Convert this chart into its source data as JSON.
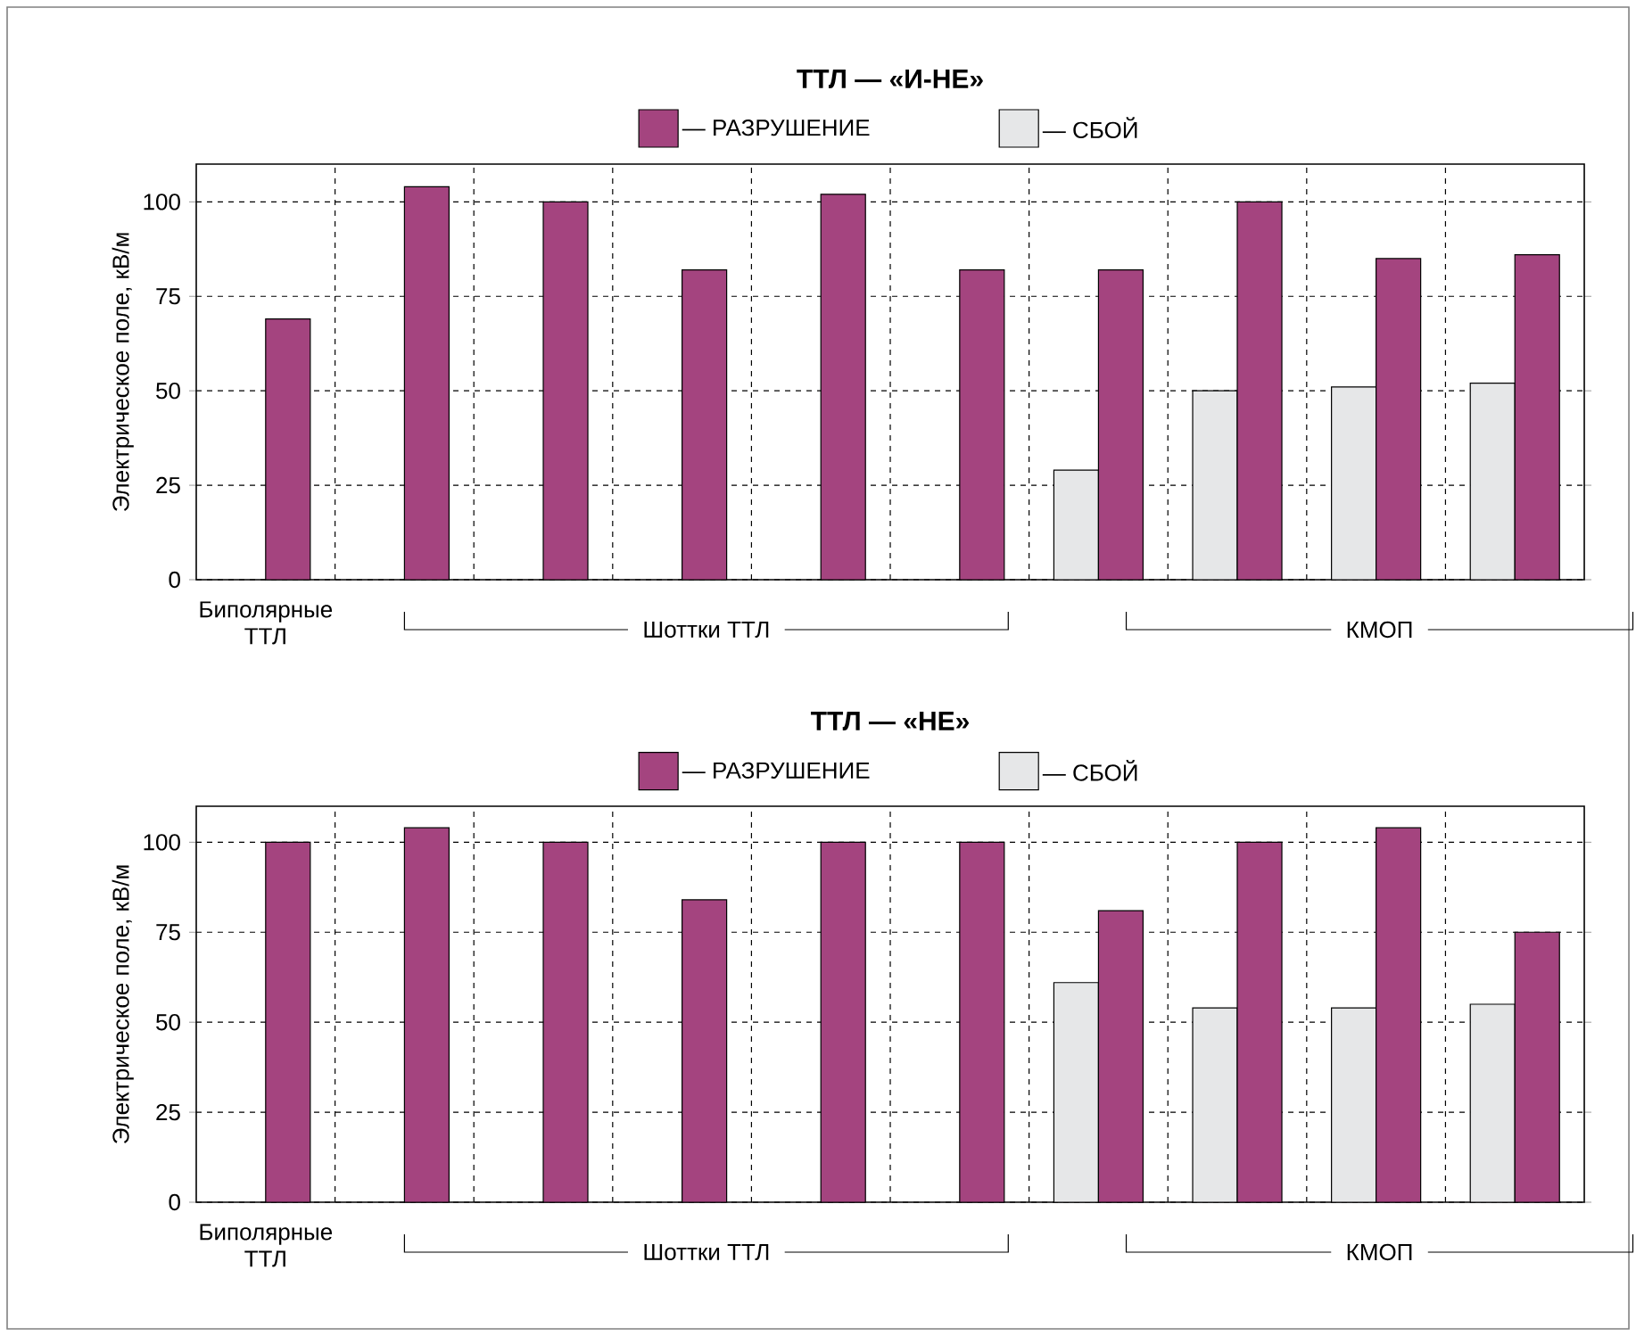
{
  "chart_data": [
    {
      "type": "bar",
      "title": "ТТЛ — «И-НЕ»",
      "ylabel": "Электрическое поле, кВ/м",
      "categories": [
        null,
        null,
        null,
        null,
        null,
        null,
        null,
        null,
        null,
        null
      ],
      "series": [
        {
          "name": "— СБОЙ",
          "color": "#e6e7e8",
          "values": [
            null,
            null,
            null,
            null,
            null,
            null,
            29,
            50,
            51,
            52
          ]
        },
        {
          "name": "— РАЗРУШЕНИЕ",
          "color": "#a4447f",
          "values": [
            69,
            104,
            100,
            82,
            102,
            82,
            82,
            100,
            85,
            86
          ]
        }
      ],
      "ylim": [
        0,
        110
      ],
      "yticks": [
        0,
        25,
        50,
        75,
        100
      ],
      "grid": true,
      "legend": "top",
      "annotations": [
        "Биполярные ТТЛ",
        "Шоттки ТТЛ",
        "КМОП"
      ]
    },
    {
      "type": "bar",
      "title": "ТТЛ — «НЕ»",
      "ylabel": "Электрическое поле, кВ/м",
      "categories": [
        null,
        null,
        null,
        null,
        null,
        null,
        null,
        null,
        null,
        null
      ],
      "series": [
        {
          "name": "— СБОЙ",
          "color": "#e6e7e8",
          "values": [
            null,
            null,
            null,
            null,
            null,
            null,
            61,
            54,
            54,
            55
          ]
        },
        {
          "name": "— РАЗРУШЕНИЕ",
          "color": "#a4447f",
          "values": [
            100,
            104,
            100,
            84,
            100,
            100,
            81,
            100,
            104,
            75
          ]
        }
      ],
      "ylim": [
        0,
        110
      ],
      "yticks": [
        0,
        25,
        50,
        75,
        100
      ],
      "grid": true,
      "legend": "top",
      "annotations": [
        "Биполярные ТТЛ",
        "Шоттки ТТЛ",
        "КМОП"
      ]
    }
  ]
}
